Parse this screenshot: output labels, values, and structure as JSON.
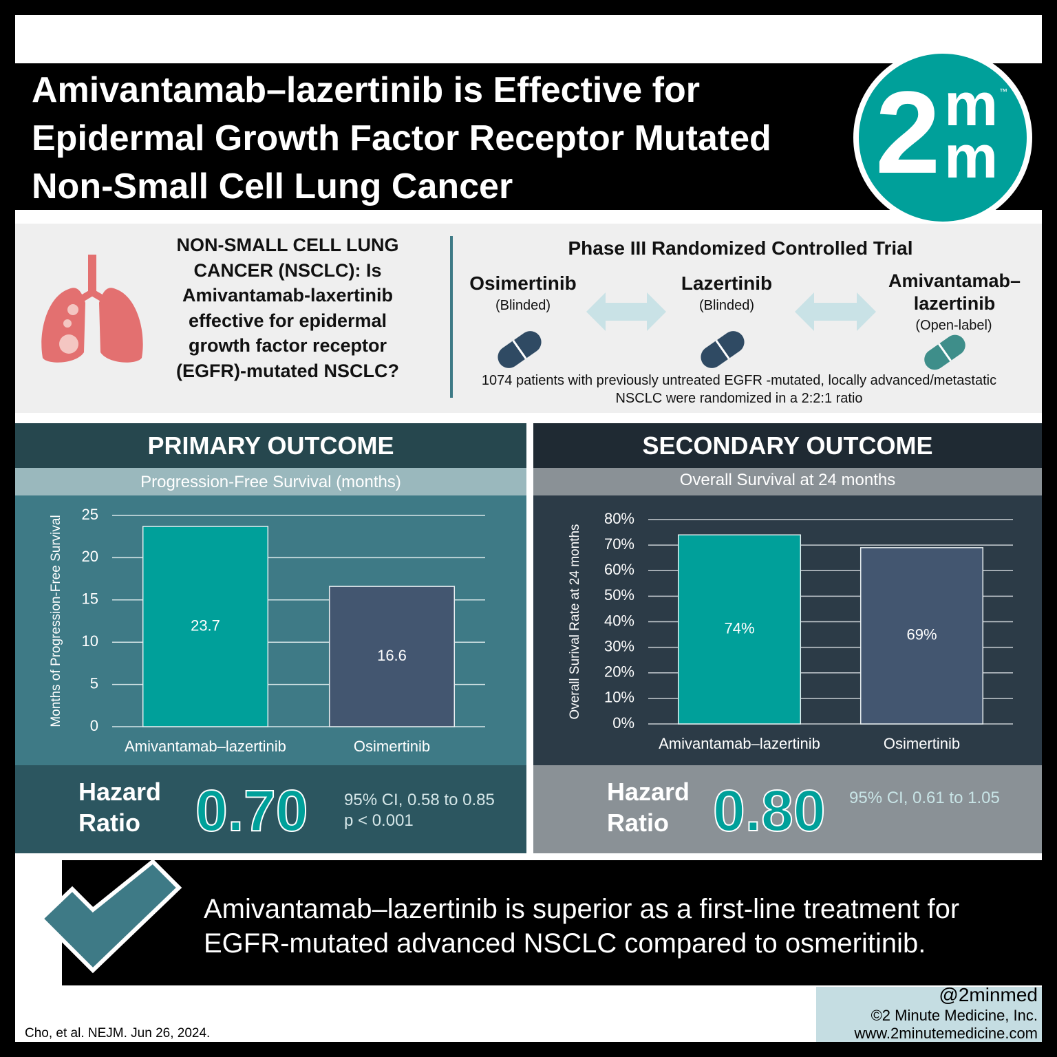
{
  "header": {
    "title": "Amivantamab–lazertinib is Effective for Epidermal Growth Factor Receptor Mutated Non-Small Cell Lung Cancer"
  },
  "logo": {
    "number": "2",
    "letters": [
      "m",
      "m"
    ],
    "mark": "™"
  },
  "question": "NON-SMALL CELL LUNG CANCER (NSCLC): Is Amivantamab-laxertinib effective for epidermal growth factor receptor (EGFR)-mutated NSCLC?",
  "trial": {
    "title": "Phase III Randomized Controlled Trial",
    "arms": [
      {
        "name": "Osimertinib",
        "note": "(Blinded)"
      },
      {
        "name": "Lazertinib",
        "note": "(Blinded)"
      },
      {
        "name": "Amivantamab–lazertinib",
        "note": "(Open-label)"
      }
    ],
    "description": "1074 patients with previously untreated EGFR -mutated, locally advanced/metastatic NSCLC were randomized in a 2:2:1 ratio"
  },
  "chart_data": [
    {
      "type": "bar",
      "title": "PRIMARY OUTCOME",
      "subtitle": "Progression-Free Survival (months)",
      "ylabel": "Months of Progression-Free Survival",
      "categories": [
        "Amivantamab–lazertinib",
        "Osimertinib"
      ],
      "values": [
        23.7,
        16.6
      ],
      "colors": [
        "#00a09a",
        "#435670"
      ],
      "ylim": [
        0,
        25
      ],
      "yticks": [
        0,
        5,
        10,
        15,
        20,
        25
      ],
      "grid": true
    },
    {
      "type": "bar",
      "title": "SECONDARY OUTCOME",
      "subtitle": "Overall Survival at 24 months",
      "ylabel": "Overall Surival Rate at 24 months",
      "categories": [
        "Amivantamab–lazertinib",
        "Osimertinib"
      ],
      "values": [
        74,
        69
      ],
      "value_labels": [
        "74%",
        "69%"
      ],
      "colors": [
        "#00a09a",
        "#435670"
      ],
      "ylim": [
        0,
        80
      ],
      "yticks": [
        {
          "value": 0,
          "label": "0%"
        },
        {
          "value": 10,
          "label": "10%"
        },
        {
          "value": 20,
          "label": "20%"
        },
        {
          "value": 30,
          "label": "30%"
        },
        {
          "value": 40,
          "label": "40%"
        },
        {
          "value": 50,
          "label": "50%"
        },
        {
          "value": 60,
          "label": "60%"
        },
        {
          "value": 70,
          "label": "70%"
        },
        {
          "value": 80,
          "label": "80%"
        }
      ],
      "grid": true
    }
  ],
  "outcomes": [
    {
      "hazard_label": "Hazard Ratio",
      "hazard_value": "0.70",
      "ci": "95% CI, 0.58 to 0.85",
      "p": "p < 0.001"
    },
    {
      "hazard_label": "Hazard Ratio",
      "hazard_value": "0.80",
      "ci": "95% CI, 0.61 to 1.05"
    }
  ],
  "conclusion": "Amivantamab–lazertinib is superior as a first-line treatment for EGFR-mutated advanced NSCLC compared to osmeritinib.",
  "citation": "Cho, et al. NEJM. Jun 26, 2024.",
  "credits": [
    "@2minmed",
    "©2 Minute Medicine, Inc.",
    "www.2minutemedicine.com"
  ]
}
